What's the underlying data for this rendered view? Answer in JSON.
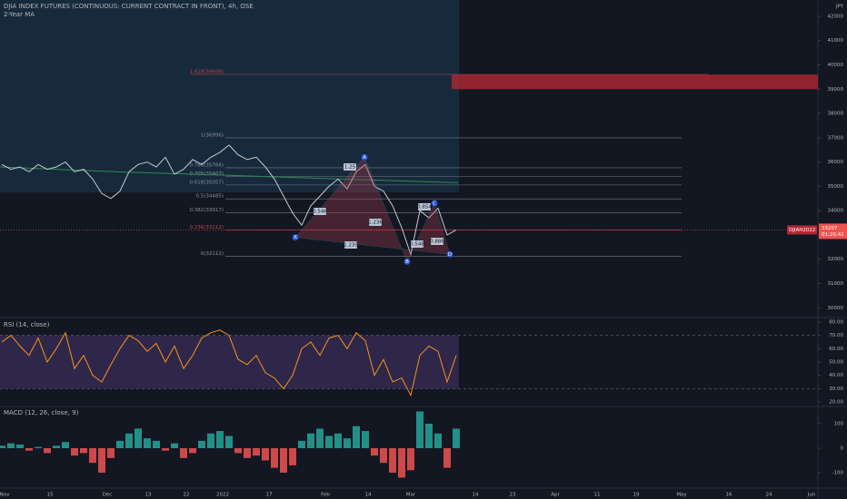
{
  "header": {
    "title": "DJIA INDEX FUTURES (CONTINUOUS: CURRENT CONTRACT IN FRONT), 4h, OSE",
    "indicator": "2-Year MA",
    "currency": "JPY"
  },
  "time_axis": {
    "labels": [
      "Nov",
      "15",
      "Dec",
      "13",
      "22",
      "2022",
      "17",
      "Feb",
      "14",
      "Mar",
      "14",
      "23",
      "Apr",
      "11",
      "19",
      "May",
      "16",
      "24",
      "Jun"
    ]
  },
  "chart_data": [
    {
      "type": "line",
      "series": [
        {
          "name": "DJIAH2022",
          "color": "#c8c9cc",
          "values": [
            35900,
            35700,
            35800,
            35600,
            35900,
            35700,
            35800,
            36000,
            35600,
            35700,
            35300,
            34700,
            34500,
            34800,
            35600,
            35900,
            36000,
            35800,
            36200,
            35500,
            35700,
            36100,
            35900,
            36200,
            36400,
            36700,
            36300,
            36100,
            36200,
            35800,
            35300,
            34600,
            33900,
            33400,
            34200,
            34600,
            35000,
            35300,
            34900,
            35600,
            35900,
            35000,
            34800,
            34200,
            33300,
            32200,
            34000,
            33700,
            34100,
            33000,
            33207
          ]
        }
      ],
      "ma": {
        "color": "#2e8b57",
        "values": [
          35800,
          35600,
          35450,
          35300,
          35150
        ]
      },
      "last_price": 33207,
      "countdown": "01:20:41",
      "ylim": [
        29600,
        42670
      ],
      "yticks": [
        {
          "value": 30000,
          "label": "30000"
        },
        31000,
        32000,
        33000,
        34000,
        35000,
        36000,
        37000,
        38000,
        39000,
        40000,
        41000,
        42000
      ],
      "zone": [
        39000,
        39600
      ],
      "fib_levels": [
        {
          "value": 39608,
          "label": "1.618(39608)"
        },
        {
          "value": 36996,
          "label": "1(36996)"
        },
        {
          "value": 35764,
          "label": "0.786(35764)"
        },
        {
          "value": 35407,
          "label": "0.705(35407)"
        },
        {
          "value": 35057,
          "label": "0.618(35057)"
        },
        {
          "value": 34485,
          "label": "0.5(34485)"
        },
        {
          "value": 33917,
          "label": "0.382(33917)"
        },
        {
          "value": 33212,
          "label": "0.236(33212)"
        },
        {
          "value": 32112,
          "label": "0(32112)"
        }
      ],
      "pattern": {
        "points": [
          {
            "label": "X",
            "value": 32900
          },
          {
            "label": "A",
            "value": 36200
          },
          {
            "label": "B",
            "value": 31900
          },
          {
            "label": "C",
            "value": 34300
          },
          {
            "label": "D",
            "value": 32200
          }
        ],
        "ratios": [
          "0.546",
          "1.25",
          "1.236",
          "1.235",
          "0.854",
          "0.548",
          "0.886"
        ]
      }
    },
    {
      "type": "line",
      "title": "RSI (14, close)",
      "color": "#f7931a",
      "values": [
        65,
        70,
        62,
        55,
        68,
        50,
        60,
        72,
        45,
        55,
        40,
        35,
        48,
        60,
        70,
        66,
        58,
        64,
        50,
        62,
        45,
        55,
        68,
        72,
        74,
        70,
        52,
        48,
        55,
        42,
        38,
        30,
        40,
        60,
        65,
        55,
        68,
        70,
        60,
        72,
        66,
        40,
        52,
        35,
        38,
        25,
        55,
        62,
        58,
        35,
        55
      ],
      "upper": 70,
      "lower": 30,
      "ylim": [
        18,
        82
      ],
      "yticks": [
        {
          "value": 80,
          "label": "80.00"
        },
        {
          "value": 70,
          "label": "70.00"
        },
        {
          "value": 60,
          "label": "60.00"
        },
        {
          "value": 50,
          "label": "50.00"
        },
        {
          "value": 40,
          "label": "40.00"
        },
        {
          "value": 30,
          "label": "30.00"
        },
        {
          "value": 20,
          "label": "20.00"
        }
      ]
    },
    {
      "type": "bar",
      "title": "MACD (12, 26, close, 9)",
      "colors": {
        "up": "#26a69a",
        "down": "#ef5350"
      },
      "values": [
        10,
        20,
        15,
        -10,
        5,
        -20,
        10,
        25,
        -30,
        -20,
        -60,
        -100,
        -40,
        30,
        60,
        80,
        40,
        30,
        -10,
        20,
        -40,
        -20,
        30,
        60,
        70,
        50,
        -20,
        -40,
        -30,
        -50,
        -80,
        -100,
        -70,
        30,
        60,
        80,
        50,
        60,
        40,
        90,
        70,
        -30,
        -60,
        -100,
        -120,
        -90,
        150,
        100,
        60,
        -80,
        80
      ],
      "ylim": [
        -163,
        163
      ],
      "yticks": [
        100,
        0,
        -100
      ]
    }
  ]
}
